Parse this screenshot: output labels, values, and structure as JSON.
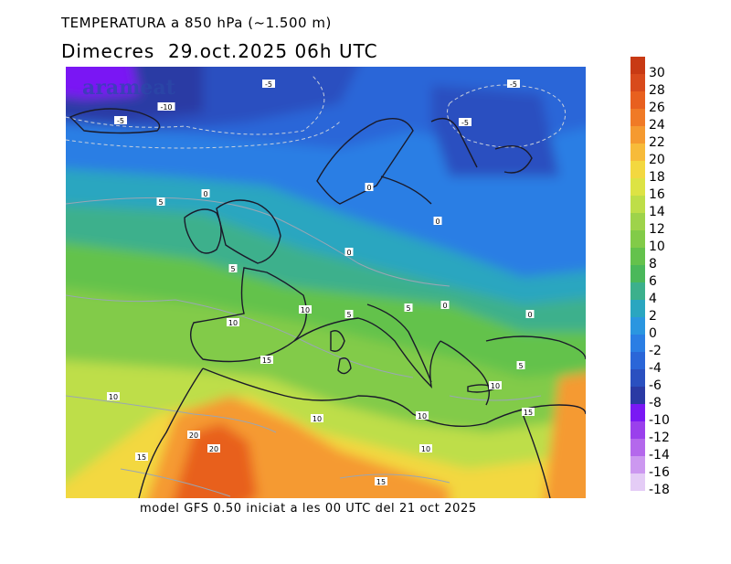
{
  "header": {
    "title": "TEMPERATURA a 850 hPa (~1.500 m)",
    "date": "Dimecres  29.oct.2025 06h UTC"
  },
  "footer": {
    "text": "model GFS 0.50 iniciat a les 00 UTC del 21 oct 2025"
  },
  "map": {
    "watermark": "arameat",
    "contour_labels": [
      "-10",
      "-5",
      "-5",
      "-5",
      "-5",
      "5",
      "0",
      "0",
      "0",
      "0",
      "5",
      "10",
      "5",
      "5",
      "0",
      "0",
      "10",
      "15",
      "10",
      "5",
      "10",
      "15",
      "20",
      "20",
      "10",
      "10",
      "15",
      "15",
      "10"
    ]
  },
  "legend": {
    "ticks": [
      "30",
      "28",
      "26",
      "24",
      "22",
      "20",
      "18",
      "16",
      "14",
      "12",
      "10",
      "8",
      "6",
      "4",
      "2",
      "0",
      "-2",
      "-4",
      "-6",
      "-8",
      "-10",
      "-12",
      "-14",
      "-16",
      "-18"
    ],
    "colors": [
      "#c83a14",
      "#d84a1c",
      "#e8601f",
      "#f07a26",
      "#f59a30",
      "#f7bb3a",
      "#f3d840",
      "#dde344",
      "#bede48",
      "#9ed34a",
      "#82cb48",
      "#64c24c",
      "#4ab85a",
      "#3cb08c",
      "#2aa6c0",
      "#2a96e0",
      "#2a7ee4",
      "#2a66d8",
      "#2a50c0",
      "#2a3aa4",
      "#7a18f4",
      "#9a40ec",
      "#b468ec",
      "#cc98f0",
      "#e4ccf6"
    ]
  }
}
